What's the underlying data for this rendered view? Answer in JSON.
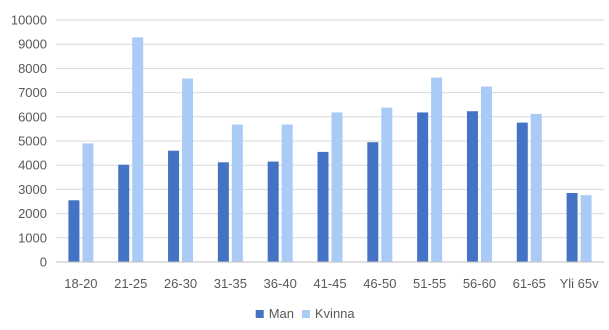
{
  "chart_data": {
    "type": "bar",
    "title": "",
    "xlabel": "",
    "ylabel": "",
    "categories": [
      "18-20",
      "21-25",
      "26-30",
      "31-35",
      "36-40",
      "41-45",
      "46-50",
      "51-55",
      "56-60",
      "61-65",
      "Yli 65v"
    ],
    "series": [
      {
        "name": "Man",
        "color": "#4472C4",
        "values": [
          2550,
          4020,
          4600,
          4120,
          4150,
          4550,
          4950,
          6180,
          6230,
          5760,
          2850
        ]
      },
      {
        "name": "Kvinna",
        "color": "#A9CBF5",
        "values": [
          4900,
          9280,
          7580,
          5680,
          5680,
          6180,
          6380,
          7620,
          7250,
          6120,
          2760
        ]
      }
    ],
    "ylim": [
      0,
      10000
    ],
    "yticks": [
      0,
      1000,
      2000,
      3000,
      4000,
      5000,
      6000,
      7000,
      8000,
      9000,
      10000
    ],
    "grid": true,
    "gridColor": "#d9d9d9",
    "legend": "bottom-center"
  }
}
